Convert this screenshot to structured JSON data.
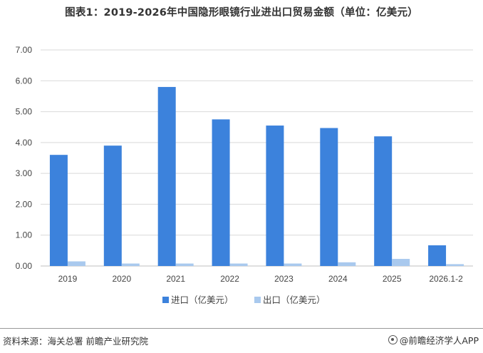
{
  "title": "图表1：2019-2026年中国隐形眼镜行业进出口贸易金额（单位：亿美元）",
  "footer": {
    "source": "资料来源：海关总署  前瞻产业研究院",
    "brand": "@前瞻经济学人APP"
  },
  "colors": {
    "import": "#3C82DC",
    "export": "#A9C9EE",
    "grid": "#D9D9D9",
    "axis": "#BFBFBF"
  },
  "chart_data": {
    "type": "bar",
    "categories": [
      "2019",
      "2020",
      "2021",
      "2022",
      "2023",
      "2024",
      "2025",
      "2026.1-2"
    ],
    "series": [
      {
        "name": "进口（亿美元）",
        "values": [
          3.6,
          3.9,
          5.8,
          4.75,
          4.55,
          4.47,
          4.2,
          0.67
        ]
      },
      {
        "name": "出口（亿美元）",
        "values": [
          0.15,
          0.08,
          0.08,
          0.08,
          0.08,
          0.12,
          0.23,
          0.06
        ]
      }
    ],
    "yticks": [
      "0.00",
      "1.00",
      "2.00",
      "3.00",
      "4.00",
      "5.00",
      "6.00",
      "7.00"
    ],
    "ylim": [
      0,
      7
    ],
    "grid": true,
    "legend_position": "bottom-center"
  }
}
